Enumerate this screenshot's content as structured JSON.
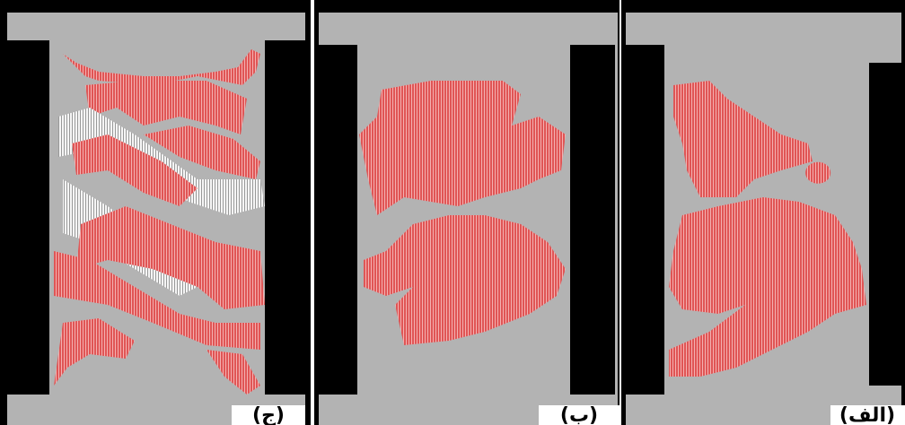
{
  "panels": [
    {
      "label": "(ج)"
    },
    {
      "label": "(ب)"
    },
    {
      "label": "(الف)"
    }
  ]
}
